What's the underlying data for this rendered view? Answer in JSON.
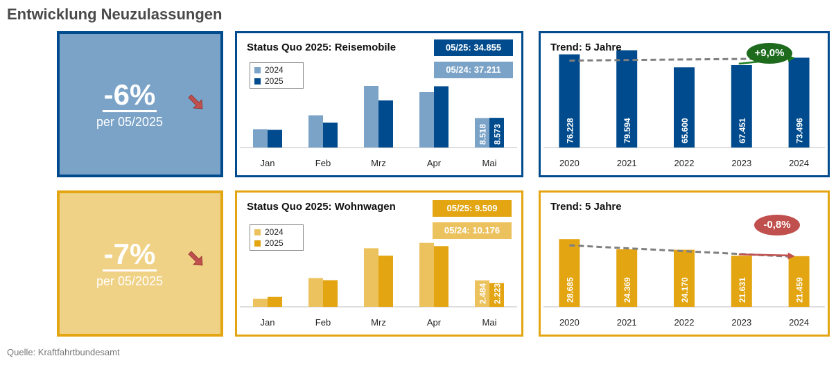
{
  "page_title": "Entwicklung Neuzulassungen",
  "source": "Quelle: Kraftfahrtbundesamt",
  "colors": {
    "blue_dark": "#004B8D",
    "blue_light": "#7BA3C8",
    "blue_kpi": "#7BA3C8",
    "gold_dark": "#E3A512",
    "gold_light": "#ECC25F",
    "gold_kpi": "#F0D286",
    "arrow_red": "#C0504D",
    "grid": "#BFBFBF"
  },
  "rows": [
    {
      "kpi": {
        "value": "-6%",
        "sub": "per 05/2025",
        "icon": "arrow-down-right-icon"
      },
      "status": {
        "title": "Status Quo 2025: Reisemobile",
        "badge_2025": "05/25: 34.855",
        "badge_2024": "05/24: 37.211",
        "legend": [
          "2024",
          "2025"
        ]
      },
      "trend": {
        "title": "Trend: 5 Jahre",
        "change": "+9,0%"
      }
    },
    {
      "kpi": {
        "value": "-7%",
        "sub": "per 05/2025",
        "icon": "arrow-down-right-icon"
      },
      "status": {
        "title": "Status Quo 2025: Wohnwagen",
        "badge_2025": "05/25: 9.509",
        "badge_2024": "05/24: 10.176",
        "legend": [
          "2024",
          "2025"
        ]
      },
      "trend": {
        "title": "Trend: 5 Jahre",
        "change": "-0,8%"
      }
    }
  ],
  "chart_data": [
    {
      "type": "bar",
      "title": "Status Quo 2025: Reisemobile",
      "categories": [
        "Jan",
        "Feb",
        "Mrz",
        "Apr",
        "Mai"
      ],
      "series": [
        {
          "name": "2024",
          "values": [
            5300,
            9300,
            17800,
            16000,
            8518
          ]
        },
        {
          "name": "2025",
          "values": [
            5100,
            7200,
            13600,
            17700,
            8573
          ]
        }
      ],
      "data_labels": {
        "Mai": [
          "8.518",
          "8.573"
        ]
      },
      "ylim": [
        0,
        20000
      ],
      "legend": "top-left"
    },
    {
      "type": "bar",
      "title": "Trend: 5 Jahre",
      "categories": [
        "2020",
        "2021",
        "2022",
        "2023",
        "2024"
      ],
      "values": [
        76228,
        79594,
        65600,
        67451,
        73496
      ],
      "data_labels": [
        "76.228",
        "79.594",
        "65.600",
        "67.451",
        "73.496"
      ],
      "ylim": [
        0,
        85000
      ],
      "trendline": true
    },
    {
      "type": "bar",
      "title": "Status Quo 2025: Wohnwagen",
      "categories": [
        "Jan",
        "Feb",
        "Mrz",
        "Apr",
        "Mai"
      ],
      "series": [
        {
          "name": "2024",
          "values": [
            750,
            2700,
            5500,
            6000,
            2484
          ]
        },
        {
          "name": "2025",
          "values": [
            930,
            2500,
            4800,
            5700,
            2223
          ]
        }
      ],
      "data_labels": {
        "Mai": [
          "2.484",
          "2.223"
        ]
      },
      "ylim": [
        0,
        6500
      ],
      "legend": "top-left"
    },
    {
      "type": "bar",
      "title": "Trend: 5 Jahre",
      "categories": [
        "2020",
        "2021",
        "2022",
        "2023",
        "2024"
      ],
      "values": [
        28685,
        24369,
        24170,
        21631,
        21459
      ],
      "data_labels": [
        "28.685",
        "24.369",
        "24.170",
        "21.631",
        "21.459"
      ],
      "ylim": [
        0,
        44000
      ],
      "trendline": true
    }
  ]
}
